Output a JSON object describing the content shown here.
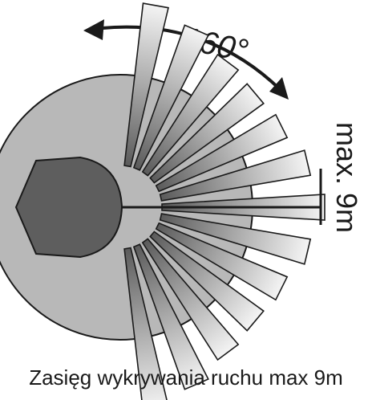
{
  "diagram": {
    "angle_label": "160°",
    "range_label": "max. 9m",
    "caption": "Zasięg wykrywania ruchu max 9m"
  },
  "colors": {
    "sensor_body": "#5e5e5e",
    "inner_zone": "#b8b8b8",
    "beam_dark": "#5a5a5a",
    "beam_light": "#f4f4f4",
    "outline": "#1a1a1a"
  }
}
